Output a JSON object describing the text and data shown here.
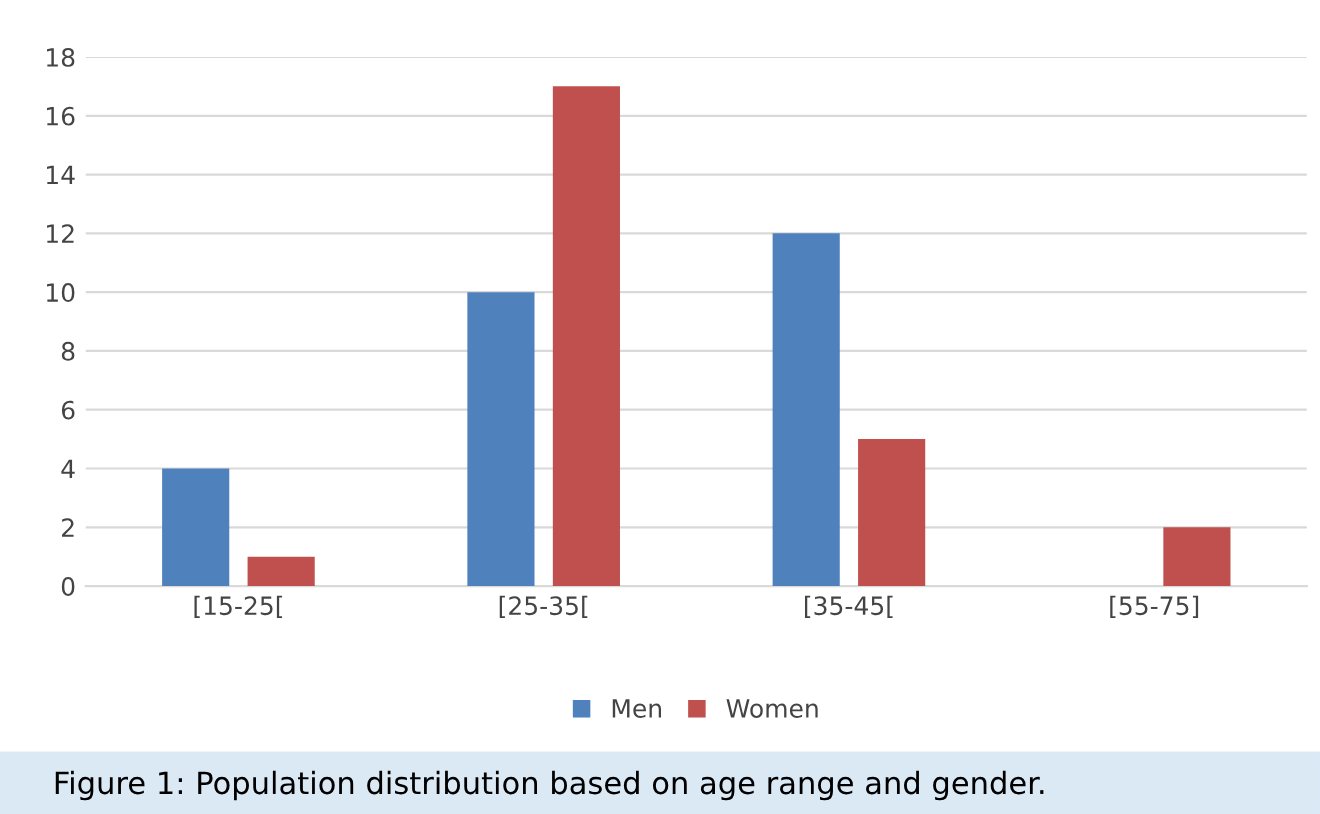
{
  "chart_data": {
    "type": "bar",
    "categories": [
      "[15-25[",
      "[25-35[",
      "[35-45[",
      "[55-75]"
    ],
    "series": [
      {
        "name": "Men",
        "color": "#4f81bd",
        "values": [
          4,
          10,
          12,
          0
        ]
      },
      {
        "name": "Women",
        "color": "#c0504d",
        "values": [
          1,
          17,
          5,
          2
        ]
      }
    ],
    "ylim": [
      0,
      18
    ],
    "yticks": [
      0,
      2,
      4,
      6,
      8,
      10,
      12,
      14,
      16,
      18
    ],
    "grid": "y",
    "legend": "bottom",
    "annotations": [
      "Figure 1: Population distribution based on age range and gender."
    ]
  }
}
